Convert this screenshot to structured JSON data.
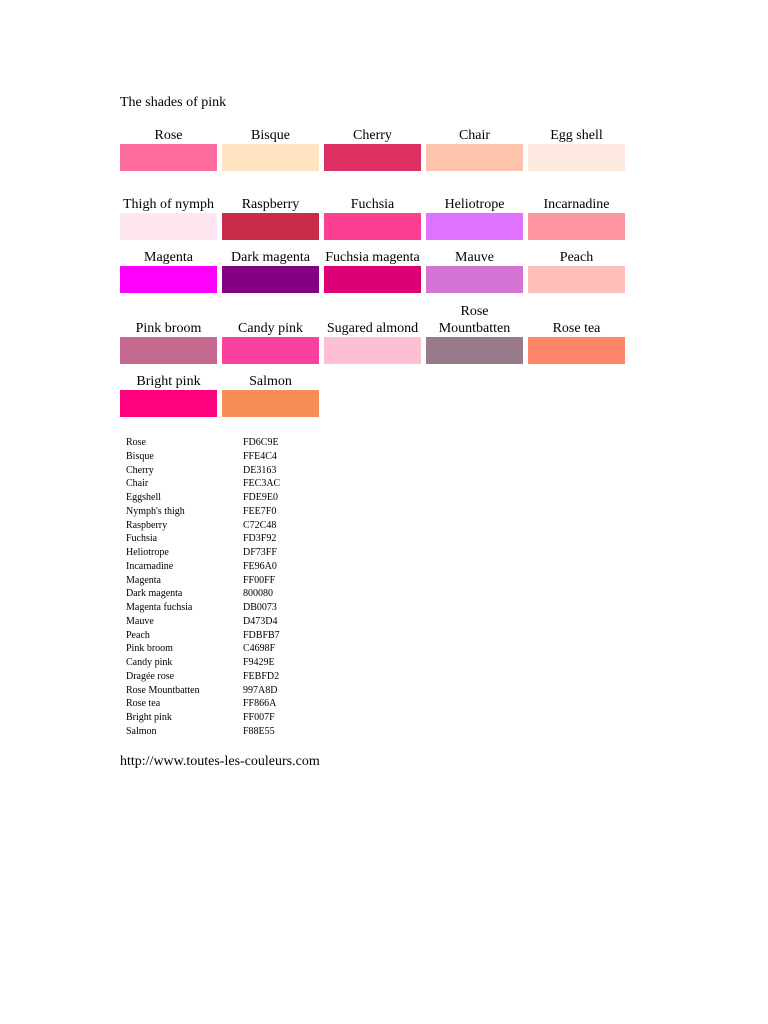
{
  "title": "The shades of pink",
  "rows": [
    {
      "label_height": 22,
      "gap": 0,
      "items": [
        {
          "name": "Rose",
          "color": "#FD6C9E"
        },
        {
          "name": "Bisque",
          "color": "#FFE4C4"
        },
        {
          "name": "Cherry",
          "color": "#DE3163"
        },
        {
          "name": "Chair",
          "color": "#FEC3AC"
        },
        {
          "name": "Egg shell",
          "color": "#FDE9E0"
        }
      ]
    },
    {
      "label_height": 38,
      "gap": 4,
      "items": [
        {
          "name": "Thigh of nymph",
          "color": "#FEE7F0"
        },
        {
          "name": "Raspberry",
          "color": "#C72C48"
        },
        {
          "name": "Fuchsia",
          "color": "#FD3F92"
        },
        {
          "name": "Heliotrope",
          "color": "#DF73FF"
        },
        {
          "name": "Incarnadine",
          "color": "#FE96A0"
        }
      ]
    },
    {
      "label_height": 18,
      "gap": 8,
      "items": [
        {
          "name": "Magenta",
          "color": "#FF00FF"
        },
        {
          "name": "Dark magenta",
          "color": "#800080"
        },
        {
          "name": "Fuchsia magenta",
          "color": "#DB0073"
        },
        {
          "name": "Mauve",
          "color": "#D473D4"
        },
        {
          "name": "Peach",
          "color": "#FDBFB7"
        }
      ]
    },
    {
      "label_height": 42,
      "gap": 2,
      "items": [
        {
          "name": "Pink broom",
          "color": "#C4698F"
        },
        {
          "name": "Candy pink",
          "color": "#F9429E"
        },
        {
          "name": "Sugared almond",
          "color": "#FEBFD2"
        },
        {
          "name": "Rose Mountbatten",
          "color": "#997A8D"
        },
        {
          "name": "Rose tea",
          "color": "#FF866A"
        }
      ]
    },
    {
      "label_height": 22,
      "gap": 4,
      "items": [
        {
          "name": "Bright pink",
          "color": "#FF007F"
        },
        {
          "name": "Salmon",
          "color": "#F88E55"
        }
      ]
    }
  ],
  "hex_list": [
    {
      "name": "Rose",
      "hex": "FD6C9E"
    },
    {
      "name": "Bisque",
      "hex": "FFE4C4"
    },
    {
      "name": "Cherry",
      "hex": "DE3163"
    },
    {
      "name": "Chair",
      "hex": "FEC3AC"
    },
    {
      "name": "Eggshell",
      "hex": "FDE9E0"
    },
    {
      "name": "Nymph's thigh",
      "hex": "FEE7F0"
    },
    {
      "name": "Raspberry",
      "hex": "C72C48"
    },
    {
      "name": "Fuchsia",
      "hex": "FD3F92"
    },
    {
      "name": "Heliotrope",
      "hex": "DF73FF"
    },
    {
      "name": "Incarnadine",
      "hex": "FE96A0"
    },
    {
      "name": "Magenta",
      "hex": "FF00FF"
    },
    {
      "name": "Dark magenta",
      "hex": "800080"
    },
    {
      "name": "Magenta fuchsia",
      "hex": "DB0073"
    },
    {
      "name": "Mauve",
      "hex": "D473D4"
    },
    {
      "name": "Peach",
      "hex": "FDBFB7"
    },
    {
      "name": "Pink broom",
      "hex": "C4698F"
    },
    {
      "name": "Candy pink",
      "hex": "F9429E"
    },
    {
      "name": "Dragée rose",
      "hex": "FEBFD2"
    },
    {
      "name": "Rose Mountbatten",
      "hex": "997A8D"
    },
    {
      "name": "Rose tea",
      "hex": "FF866A"
    },
    {
      "name": "Bright pink",
      "hex": "FF007F"
    },
    {
      "name": "Salmon",
      "hex": "F88E55"
    }
  ],
  "footer_url": "http://www.toutes-les-couleurs.com"
}
